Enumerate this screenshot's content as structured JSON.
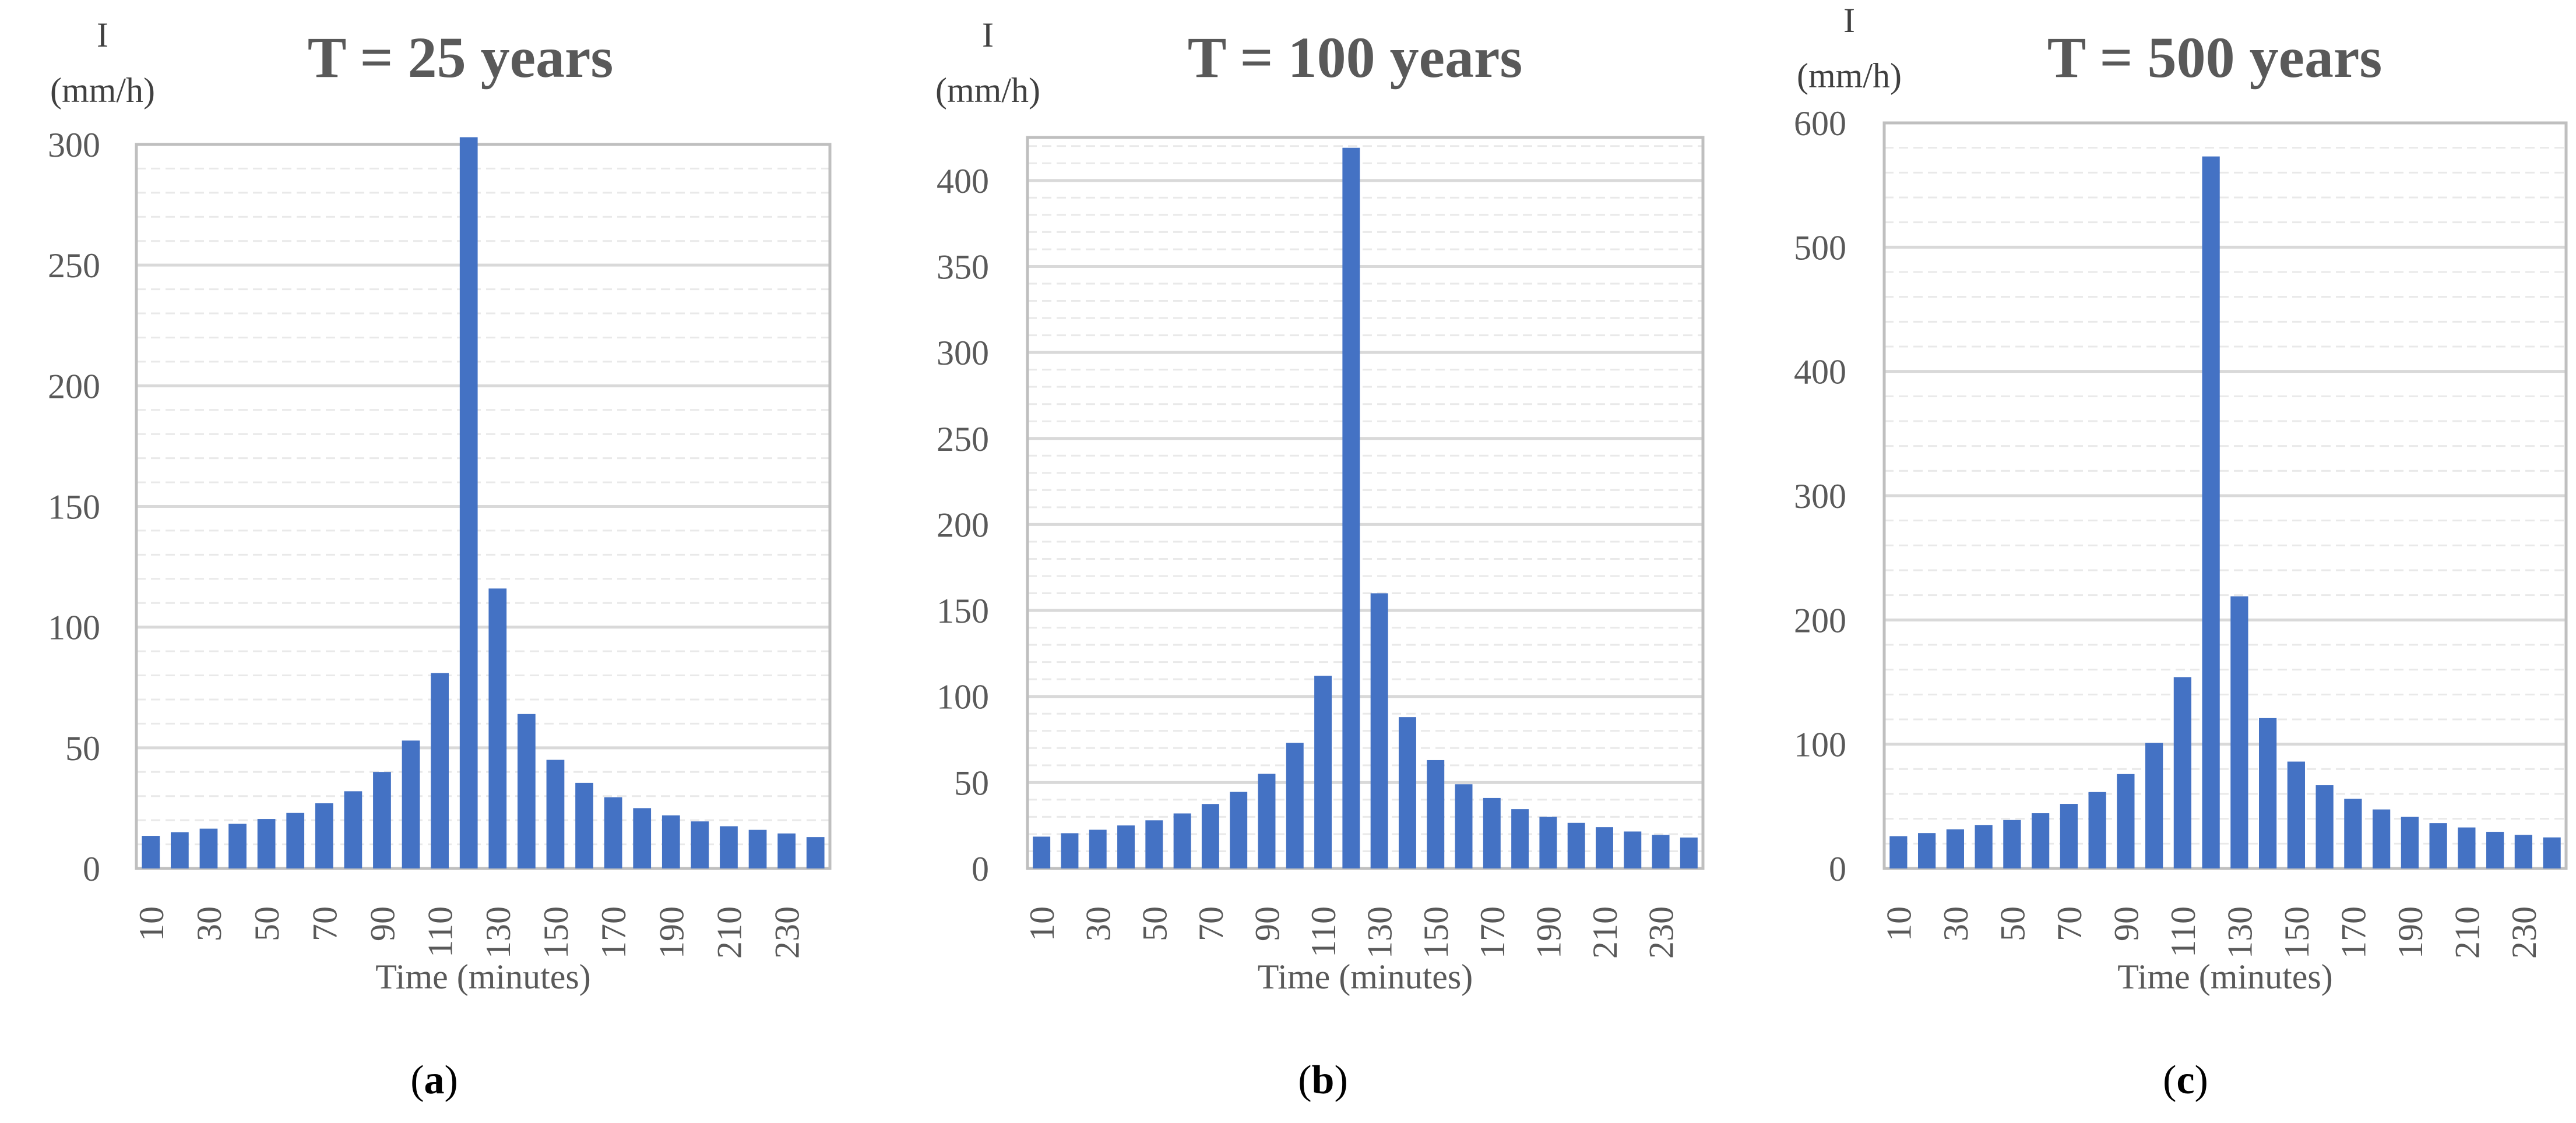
{
  "colors": {
    "bar": "#4472c4",
    "text": "#595959",
    "grid_major": "#d9d9d9",
    "grid_minor": "#e9e9e9"
  },
  "chart_data": [
    {
      "type": "bar",
      "panel_label": "a",
      "title": "T = 25 years",
      "ylabel_line1": "I",
      "ylabel_line2": "(mm/h)",
      "xlabel": "Time (minutes)",
      "ylim": [
        0,
        300
      ],
      "ymajor": 50,
      "yticks": [
        0,
        50,
        100,
        150,
        200,
        250,
        300
      ],
      "grid": true,
      "categories": [
        10,
        20,
        30,
        40,
        50,
        60,
        70,
        80,
        90,
        100,
        110,
        120,
        130,
        140,
        150,
        160,
        170,
        180,
        190,
        200,
        210,
        220,
        230,
        240
      ],
      "xtick_labels": [
        "10",
        "30",
        "50",
        "70",
        "90",
        "110",
        "130",
        "150",
        "170",
        "190",
        "210",
        "230"
      ],
      "values": [
        13.5,
        15,
        16.5,
        18.5,
        20.5,
        23,
        27,
        32,
        40,
        53,
        81,
        303,
        116,
        64,
        45,
        35.5,
        29.5,
        25,
        22,
        19.5,
        17.5,
        16,
        14.5,
        13
      ]
    },
    {
      "type": "bar",
      "panel_label": "b",
      "title": "T = 100 years",
      "ylabel_line1": "I",
      "ylabel_line2": "(mm/h)",
      "xlabel": "Time (minutes)",
      "ylim": [
        0,
        425
      ],
      "ymajor": 50,
      "yticks": [
        0,
        50,
        100,
        150,
        200,
        250,
        300,
        350,
        400
      ],
      "grid": true,
      "categories": [
        10,
        20,
        30,
        40,
        50,
        60,
        70,
        80,
        90,
        100,
        110,
        120,
        130,
        140,
        150,
        160,
        170,
        180,
        190,
        200,
        210,
        220,
        230,
        240
      ],
      "xtick_labels": [
        "10",
        "30",
        "50",
        "70",
        "90",
        "110",
        "130",
        "150",
        "170",
        "190",
        "210",
        "230"
      ],
      "values": [
        18.5,
        20.5,
        22.5,
        25,
        28,
        32,
        37.5,
        44.5,
        55,
        73,
        112,
        419,
        160,
        88,
        63,
        49,
        41,
        34.5,
        30,
        26.5,
        24,
        21.5,
        19.5,
        18
      ]
    },
    {
      "type": "bar",
      "panel_label": "c",
      "title": "T = 500 years",
      "ylabel_line1": "I",
      "ylabel_line2": "(mm/h)",
      "xlabel": "Time (minutes)",
      "ylim": [
        0,
        600
      ],
      "ymajor": 100,
      "yticks": [
        0,
        100,
        200,
        300,
        400,
        500,
        600
      ],
      "grid": true,
      "categories": [
        10,
        20,
        30,
        40,
        50,
        60,
        70,
        80,
        90,
        100,
        110,
        120,
        130,
        140,
        150,
        160,
        170,
        180,
        190,
        200,
        210,
        220,
        230,
        240
      ],
      "xtick_labels": [
        "10",
        "30",
        "50",
        "70",
        "90",
        "110",
        "130",
        "150",
        "170",
        "190",
        "210",
        "230"
      ],
      "values": [
        26,
        28.5,
        31.5,
        35,
        39,
        44.5,
        52,
        61.5,
        76,
        101,
        154,
        573,
        219,
        121,
        86,
        67,
        56,
        47.5,
        41.5,
        36.5,
        33,
        29.5,
        27,
        25
      ]
    }
  ]
}
